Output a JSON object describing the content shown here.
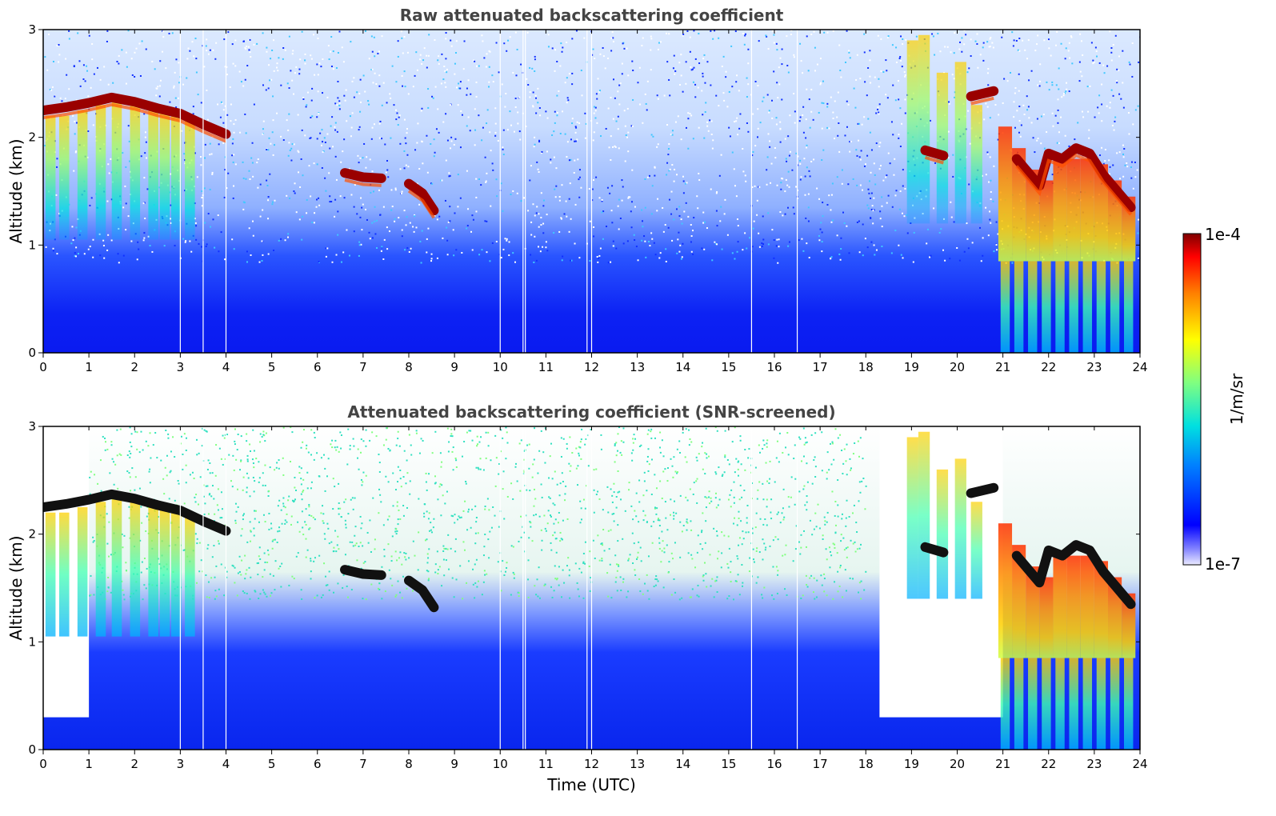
{
  "chart_data": [
    {
      "type": "heatmap",
      "title": "Raw attenuated backscattering coefficient",
      "xlabel": "",
      "ylabel": "Altitude (km)",
      "xlim": [
        0,
        24
      ],
      "ylim": [
        0,
        3
      ],
      "x_ticks": [
        "0",
        "1",
        "2",
        "3",
        "4",
        "5",
        "6",
        "7",
        "8",
        "9",
        "10",
        "11",
        "12",
        "13",
        "14",
        "15",
        "16",
        "17",
        "18",
        "19",
        "20",
        "21",
        "22",
        "23",
        "24"
      ],
      "y_ticks": [
        "0",
        "1",
        "2",
        "3"
      ],
      "screened": false,
      "cloud_layers": [
        {
          "x": [
            0.0,
            0.5,
            1.0,
            1.5,
            2.0,
            2.5,
            3.0,
            3.5,
            4.0
          ],
          "y": [
            2.25,
            2.28,
            2.32,
            2.37,
            2.33,
            2.27,
            2.22,
            2.12,
            2.03
          ]
        },
        {
          "x": [
            6.6,
            7.0,
            7.4
          ],
          "y": [
            1.67,
            1.63,
            1.62
          ]
        },
        {
          "x": [
            8.0,
            8.3,
            8.55
          ],
          "y": [
            1.57,
            1.48,
            1.32
          ]
        },
        {
          "x": [
            19.3,
            19.7
          ],
          "y": [
            1.88,
            1.83
          ]
        },
        {
          "x": [
            20.3,
            20.8
          ],
          "y": [
            2.38,
            2.43
          ]
        },
        {
          "x": [
            21.3,
            21.8,
            22.0,
            22.3,
            22.6,
            22.9,
            23.2,
            23.5,
            23.8
          ],
          "y": [
            1.8,
            1.55,
            1.85,
            1.8,
            1.9,
            1.85,
            1.65,
            1.5,
            1.35
          ]
        }
      ]
    },
    {
      "type": "heatmap",
      "title": "Attenuated backscattering coefficient (SNR-screened)",
      "xlabel": "Time (UTC)",
      "ylabel": "Altitude (km)",
      "xlim": [
        0,
        24
      ],
      "ylim": [
        0,
        3
      ],
      "x_ticks": [
        "0",
        "1",
        "2",
        "3",
        "4",
        "5",
        "6",
        "7",
        "8",
        "9",
        "10",
        "11",
        "12",
        "13",
        "14",
        "15",
        "16",
        "17",
        "18",
        "19",
        "20",
        "21",
        "22",
        "23",
        "24"
      ],
      "y_ticks": [
        "0",
        "1",
        "2",
        "3"
      ],
      "screened": true,
      "cloud_layers": [
        {
          "x": [
            0.0,
            0.5,
            1.0,
            1.5,
            2.0,
            2.5,
            3.0,
            3.5,
            4.0
          ],
          "y": [
            2.25,
            2.28,
            2.32,
            2.37,
            2.33,
            2.27,
            2.22,
            2.12,
            2.03
          ]
        },
        {
          "x": [
            6.6,
            7.0,
            7.4
          ],
          "y": [
            1.67,
            1.63,
            1.62
          ]
        },
        {
          "x": [
            8.0,
            8.3,
            8.55
          ],
          "y": [
            1.57,
            1.48,
            1.32
          ]
        },
        {
          "x": [
            19.3,
            19.7
          ],
          "y": [
            1.88,
            1.83
          ]
        },
        {
          "x": [
            20.3,
            20.8
          ],
          "y": [
            2.38,
            2.43
          ]
        },
        {
          "x": [
            21.3,
            21.8,
            22.0,
            22.3,
            22.6,
            22.9,
            23.2,
            23.5,
            23.8
          ],
          "y": [
            1.8,
            1.55,
            1.85,
            1.8,
            1.9,
            1.85,
            1.65,
            1.5,
            1.35
          ]
        }
      ]
    }
  ],
  "colorbar": {
    "label": "1/m/sr",
    "max_label": "1e-4",
    "min_label": "1e-7",
    "scale": "log",
    "colormap": "jet"
  }
}
